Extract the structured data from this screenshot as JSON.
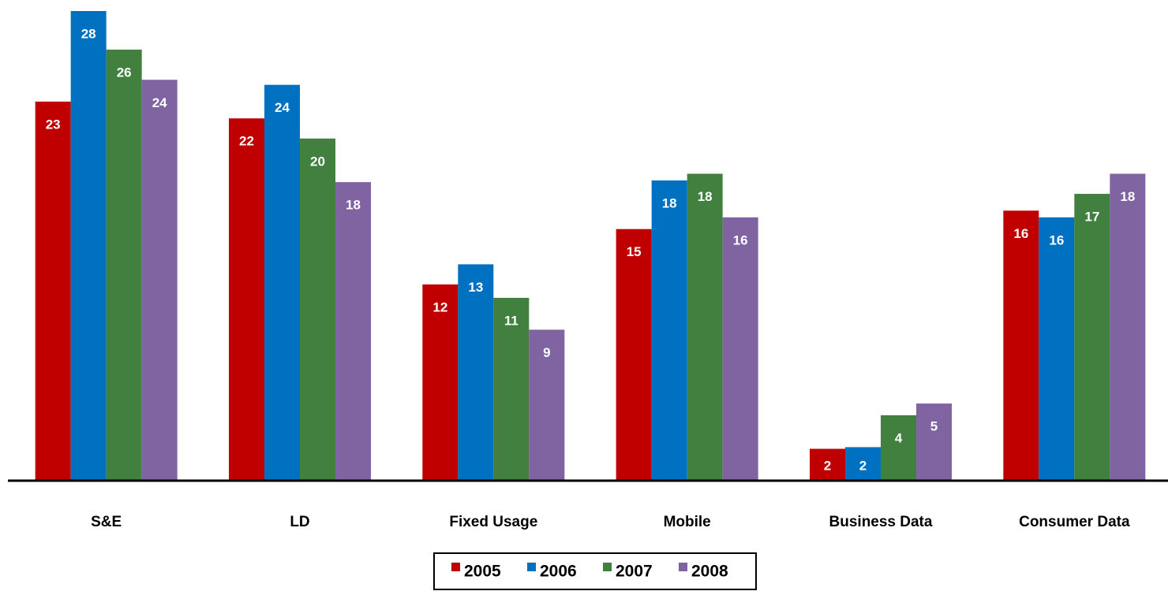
{
  "chart_data": {
    "type": "bar",
    "categories": [
      "S&E",
      "LD",
      "Fixed Usage",
      "Mobile",
      "Business Data",
      "Consumer Data"
    ],
    "series": [
      {
        "name": "2005",
        "color": "#c00000",
        "values": [
          22.6,
          21.6,
          11.7,
          15.0,
          1.9,
          16.1
        ],
        "value_labels": [
          "23",
          "22",
          "12",
          "15",
          "2",
          "16"
        ]
      },
      {
        "name": "2006",
        "color": "#0070c0",
        "values": [
          28.0,
          23.6,
          12.9,
          17.9,
          2.0,
          15.7
        ],
        "value_labels": [
          "28",
          "24",
          "13",
          "18",
          "2",
          "16"
        ]
      },
      {
        "name": "2007",
        "color": "#41803f",
        "values": [
          25.7,
          20.4,
          10.9,
          18.3,
          3.9,
          17.1
        ],
        "value_labels": [
          "26",
          "20",
          "11",
          "18",
          "4",
          "17"
        ]
      },
      {
        "name": "2008",
        "color": "#8064a2",
        "values": [
          23.9,
          17.8,
          9.0,
          15.7,
          4.6,
          18.3
        ],
        "value_labels": [
          "24",
          "18",
          "9",
          "16",
          "5",
          "18"
        ]
      }
    ],
    "ylim": [
      0,
      28
    ],
    "legend": "bottom"
  }
}
